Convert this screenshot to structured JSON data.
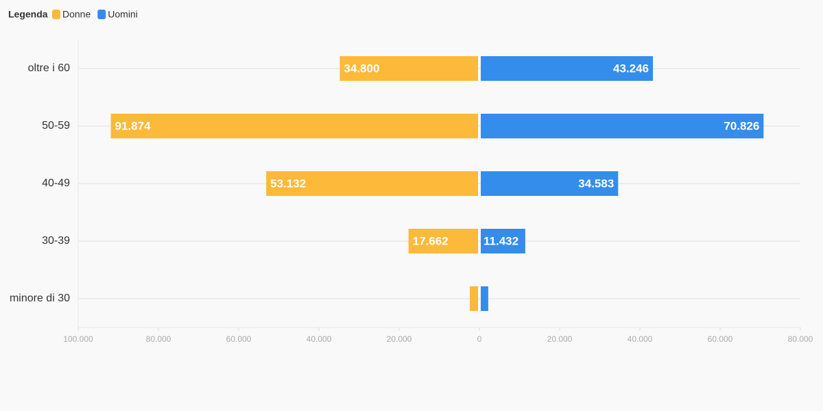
{
  "chart_data": {
    "type": "bar",
    "orientation": "horizontal",
    "legend_title": "Legenda",
    "legend": "top-left",
    "categories": [
      "oltre i 60",
      "50-59",
      "40-49",
      "30-39",
      "minore di 30"
    ],
    "series": [
      {
        "name": "Donne",
        "color": "#fdb93a",
        "values": [
          -34800,
          -91874,
          -53132,
          -17662,
          -2400
        ],
        "value_labels": [
          "34.800",
          "91.874",
          "53.132",
          "17.662",
          null
        ]
      },
      {
        "name": "Uomini",
        "color": "#348deb",
        "values": [
          43246,
          70826,
          34583,
          11432,
          2200
        ],
        "value_labels": [
          "43.246",
          "70.826",
          "34.583",
          "11.432",
          null
        ]
      }
    ],
    "xlim": [
      -100000,
      80000
    ],
    "xticks": [
      {
        "value": -100000,
        "label": "100.000"
      },
      {
        "value": -80000,
        "label": "80.000"
      },
      {
        "value": -60000,
        "label": "60.000"
      },
      {
        "value": -40000,
        "label": "40.000"
      },
      {
        "value": -20000,
        "label": "20.000"
      },
      0,
      {
        "value": 20000,
        "label": "20.000"
      },
      {
        "value": 40000,
        "label": "40.000"
      },
      {
        "value": 60000,
        "label": "60.000"
      },
      {
        "value": 80000,
        "label": "80.000"
      }
    ],
    "grid": true
  }
}
